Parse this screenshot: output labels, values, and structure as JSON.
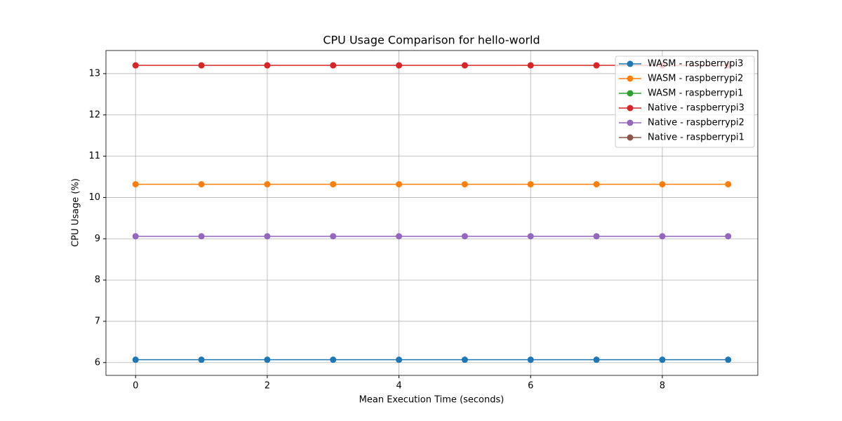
{
  "chart_data": {
    "type": "line",
    "title": "CPU Usage Comparison for hello-world",
    "xlabel": "Mean Execution Time (seconds)",
    "ylabel": "CPU Usage (%)",
    "x": [
      0,
      1,
      2,
      3,
      4,
      5,
      6,
      7,
      8,
      9
    ],
    "series": [
      {
        "name": "WASM - raspberrypi3",
        "color": "#1f77b4",
        "values": [
          6.07,
          6.07,
          6.07,
          6.07,
          6.07,
          6.07,
          6.07,
          6.07,
          6.07,
          6.07
        ]
      },
      {
        "name": "WASM - raspberrypi2",
        "color": "#ff7f0e",
        "values": [
          10.32,
          10.32,
          10.32,
          10.32,
          10.32,
          10.32,
          10.32,
          10.32,
          10.32,
          10.32
        ]
      },
      {
        "name": "WASM - raspberrypi1",
        "color": "#2ca02c",
        "values": [
          null,
          null,
          null,
          null,
          null,
          null,
          null,
          null,
          null,
          null
        ]
      },
      {
        "name": "Native - raspberrypi3",
        "color": "#d62728",
        "values": [
          13.2,
          13.2,
          13.2,
          13.2,
          13.2,
          13.2,
          13.2,
          13.2,
          13.2,
          13.2
        ]
      },
      {
        "name": "Native - raspberrypi2",
        "color": "#9467bd",
        "values": [
          9.06,
          9.06,
          9.06,
          9.06,
          9.06,
          9.06,
          9.06,
          9.06,
          9.06,
          9.06
        ]
      },
      {
        "name": "Native - raspberrypi1",
        "color": "#8c564b",
        "values": [
          null,
          null,
          null,
          null,
          null,
          null,
          null,
          null,
          null,
          null
        ]
      }
    ],
    "xlim": [
      -0.45,
      9.45
    ],
    "xticks": [
      0,
      2,
      4,
      6,
      8
    ],
    "ylim": [
      5.69,
      13.56
    ],
    "yticks": [
      6,
      7,
      8,
      9,
      10,
      11,
      12,
      13
    ],
    "grid": true,
    "legend": "upper right"
  }
}
